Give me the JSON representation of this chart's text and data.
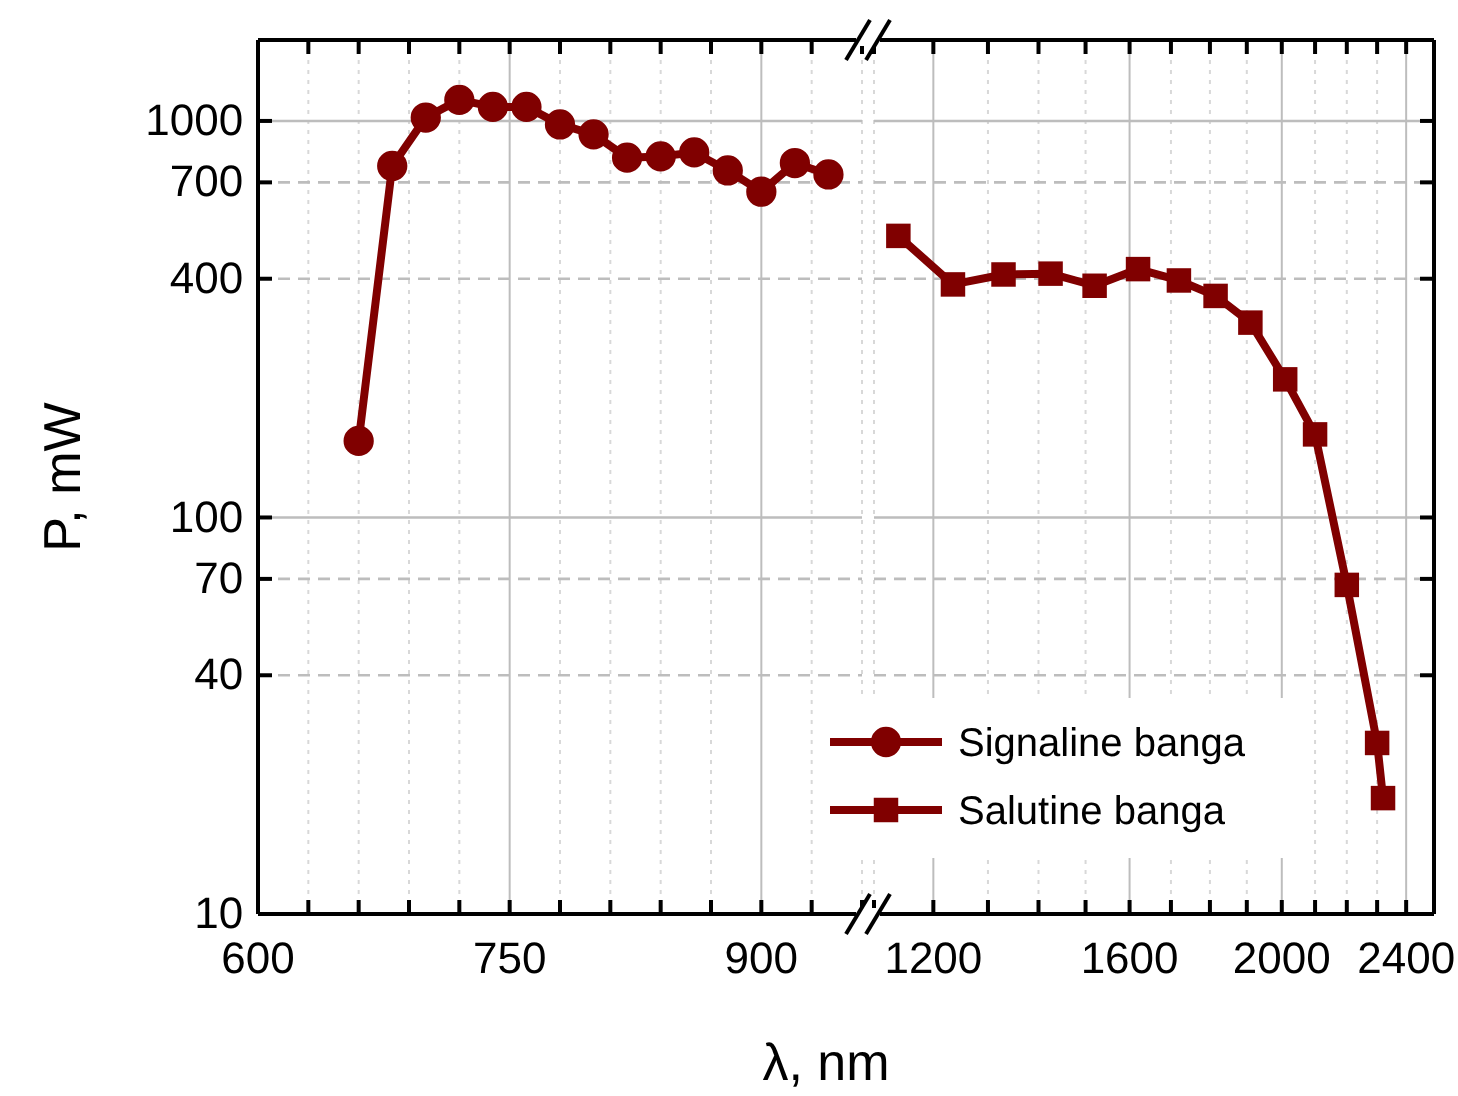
{
  "chart_data": [
    {
      "type": "line",
      "xlabel": "λ, nm",
      "ylabel": "P, mW",
      "log": "y",
      "grid": true,
      "legend": "bottom right",
      "marker": "circle",
      "line_style": "solid",
      "x": [
        660,
        680,
        700,
        720,
        740,
        760,
        780,
        800,
        820,
        840,
        860,
        880,
        900,
        920,
        940
      ],
      "xlim": [
        600,
        960
      ],
      "xticks": [
        600,
        {
          "value": 630,
          "label": null
        },
        {
          "value": 660,
          "label": null
        },
        {
          "value": 690,
          "label": null
        },
        {
          "value": 720,
          "label": null
        },
        750,
        {
          "value": 780,
          "label": null
        },
        {
          "value": 810,
          "label": null
        },
        {
          "value": 840,
          "label": null
        },
        {
          "value": 870,
          "label": null
        },
        900,
        {
          "value": 930,
          "label": null
        },
        {
          "value": 960,
          "label": null
        }
      ],
      "ylim": [
        10,
        1600
      ],
      "yticks": [
        10,
        40,
        70,
        100,
        400,
        700,
        1000
      ],
      "series": [
        {
          "name": "Signaline banga",
          "color": "#800000",
          "values": [
            156,
            770,
            1020,
            1130,
            1085,
            1085,
            980,
            925,
            808,
            814,
            833,
            750,
            663,
            783,
            733
          ]
        }
      ]
    },
    {
      "type": "line",
      "log": "xy",
      "grid": true,
      "legend": "bottom left",
      "marker": "square",
      "line_style": "solid",
      "tick_labels": "x",
      "x": [
        1140,
        1235,
        1330,
        1425,
        1520,
        1620,
        1720,
        1815,
        1910,
        2010,
        2100,
        2200,
        2300,
        2320
      ],
      "xlim": [
        1100,
        2500
      ],
      "xticks": [
        {
          "value": 1100,
          "label": null
        },
        1200,
        {
          "value": 1300,
          "label": null
        },
        {
          "value": 1400,
          "label": null
        },
        {
          "value": 1500,
          "label": null
        },
        1600,
        {
          "value": 1700,
          "label": null
        },
        {
          "value": 1800,
          "label": null
        },
        {
          "value": 1900,
          "label": null
        },
        2000,
        {
          "value": 2100,
          "label": null
        },
        {
          "value": 2200,
          "label": null
        },
        {
          "value": 2300,
          "label": null
        },
        2400,
        {
          "value": 2500,
          "label": null
        }
      ],
      "ylim": [
        10,
        1600
      ],
      "yticks": [
        10,
        40,
        70,
        100,
        400,
        700,
        1000
      ],
      "series": [
        {
          "name": "Salutine banga",
          "color": "#800000",
          "values": [
            513,
            387,
            410,
            412,
            384,
            423,
            396,
            362,
            310,
            223,
            162,
            67.6,
            27,
            19.6
          ]
        }
      ]
    }
  ]
}
